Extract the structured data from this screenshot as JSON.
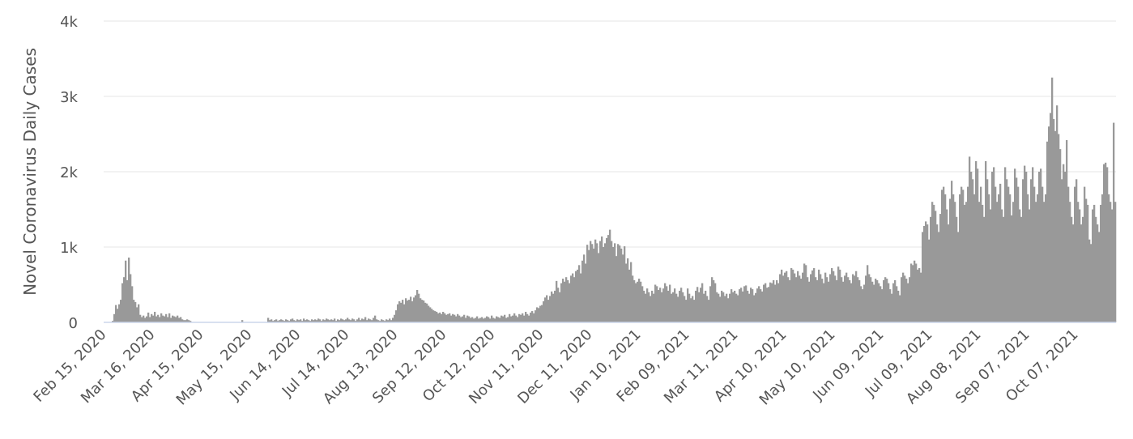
{
  "chart_data": {
    "type": "bar",
    "y_label": "Novel Coronavirus Daily Cases",
    "color": "#999999",
    "grid": true,
    "ylim": [
      0,
      4000
    ],
    "yticks": [
      0,
      {
        "value": 1000,
        "label": "1k"
      },
      {
        "value": 2000,
        "label": "2k"
      },
      {
        "value": 3000,
        "label": "3k"
      },
      {
        "value": 4000,
        "label": "4k"
      }
    ],
    "categories": [
      "Feb 15, 2020",
      null,
      null,
      null,
      null,
      null,
      null,
      null,
      null,
      null,
      null,
      null,
      null,
      null,
      null,
      null,
      null,
      null,
      null,
      null,
      null,
      null,
      null,
      null,
      null,
      null,
      null,
      null,
      null,
      null,
      "Mar 16, 2020",
      null,
      null,
      null,
      null,
      null,
      null,
      null,
      null,
      null,
      null,
      null,
      null,
      null,
      null,
      null,
      null,
      null,
      null,
      null,
      null,
      null,
      null,
      null,
      null,
      null,
      null,
      null,
      null,
      null,
      "Apr 15, 2020",
      null,
      null,
      null,
      null,
      null,
      null,
      null,
      null,
      null,
      null,
      null,
      null,
      null,
      null,
      null,
      null,
      null,
      null,
      null,
      null,
      null,
      null,
      null,
      null,
      null,
      null,
      null,
      null,
      null,
      "May 15, 2020",
      null,
      null,
      null,
      null,
      null,
      null,
      null,
      null,
      null,
      null,
      null,
      null,
      null,
      null,
      null,
      null,
      null,
      null,
      null,
      null,
      null,
      null,
      null,
      null,
      null,
      null,
      null,
      null,
      null,
      "Jun 14, 2020",
      null,
      null,
      null,
      null,
      null,
      null,
      null,
      null,
      null,
      null,
      null,
      null,
      null,
      null,
      null,
      null,
      null,
      null,
      null,
      null,
      null,
      null,
      null,
      null,
      null,
      null,
      null,
      null,
      null,
      "Jul 14, 2020",
      null,
      null,
      null,
      null,
      null,
      null,
      null,
      null,
      null,
      null,
      null,
      null,
      null,
      null,
      null,
      null,
      null,
      null,
      null,
      null,
      null,
      null,
      null,
      null,
      null,
      null,
      null,
      null,
      null,
      "Aug 13, 2020",
      null,
      null,
      null,
      null,
      null,
      null,
      null,
      null,
      null,
      null,
      null,
      null,
      null,
      null,
      null,
      null,
      null,
      null,
      null,
      null,
      null,
      null,
      null,
      null,
      null,
      null,
      null,
      null,
      null,
      "Sep 12, 2020",
      null,
      null,
      null,
      null,
      null,
      null,
      null,
      null,
      null,
      null,
      null,
      null,
      null,
      null,
      null,
      null,
      null,
      null,
      null,
      null,
      null,
      null,
      null,
      null,
      null,
      null,
      null,
      null,
      null,
      "Oct 12, 2020",
      null,
      null,
      null,
      null,
      null,
      null,
      null,
      null,
      null,
      null,
      null,
      null,
      null,
      null,
      null,
      null,
      null,
      null,
      null,
      null,
      null,
      null,
      null,
      null,
      null,
      null,
      null,
      null,
      null,
      "Nov 11, 2020",
      null,
      null,
      null,
      null,
      null,
      null,
      null,
      null,
      null,
      null,
      null,
      null,
      null,
      null,
      null,
      null,
      null,
      null,
      null,
      null,
      null,
      null,
      null,
      null,
      null,
      null,
      null,
      null,
      null,
      "Dec 11, 2020",
      null,
      null,
      null,
      null,
      null,
      null,
      null,
      null,
      null,
      null,
      null,
      null,
      null,
      null,
      null,
      null,
      null,
      null,
      null,
      null,
      null,
      null,
      null,
      null,
      null,
      null,
      null,
      null,
      null,
      "Jan 10, 2021",
      null,
      null,
      null,
      null,
      null,
      null,
      null,
      null,
      null,
      null,
      null,
      null,
      null,
      null,
      null,
      null,
      null,
      null,
      null,
      null,
      null,
      null,
      null,
      null,
      null,
      null,
      null,
      null,
      null,
      "Feb 09, 2021",
      null,
      null,
      null,
      null,
      null,
      null,
      null,
      null,
      null,
      null,
      null,
      null,
      null,
      null,
      null,
      null,
      null,
      null,
      null,
      null,
      null,
      null,
      null,
      null,
      null,
      null,
      null,
      null,
      null,
      "Mar 11, 2021",
      null,
      null,
      null,
      null,
      null,
      null,
      null,
      null,
      null,
      null,
      null,
      null,
      null,
      null,
      null,
      null,
      null,
      null,
      null,
      null,
      null,
      null,
      null,
      null,
      null,
      null,
      null,
      null,
      null,
      "Apr 10, 2021",
      null,
      null,
      null,
      null,
      null,
      null,
      null,
      null,
      null,
      null,
      null,
      null,
      null,
      null,
      null,
      null,
      null,
      null,
      null,
      null,
      null,
      null,
      null,
      null,
      null,
      null,
      null,
      null,
      null,
      "May 10, 2021",
      null,
      null,
      null,
      null,
      null,
      null,
      null,
      null,
      null,
      null,
      null,
      null,
      null,
      null,
      null,
      null,
      null,
      null,
      null,
      null,
      null,
      null,
      null,
      null,
      null,
      null,
      null,
      null,
      null,
      "Jun 09, 2021",
      null,
      null,
      null,
      null,
      null,
      null,
      null,
      null,
      null,
      null,
      null,
      null,
      null,
      null,
      null,
      null,
      null,
      null,
      null,
      null,
      null,
      null,
      null,
      null,
      null,
      null,
      null,
      null,
      null,
      "Jul 09, 2021",
      null,
      null,
      null,
      null,
      null,
      null,
      null,
      null,
      null,
      null,
      null,
      null,
      null,
      null,
      null,
      null,
      null,
      null,
      null,
      null,
      null,
      null,
      null,
      null,
      null,
      null,
      null,
      null,
      null,
      "Aug 08, 2021",
      null,
      null,
      null,
      null,
      null,
      null,
      null,
      null,
      null,
      null,
      null,
      null,
      null,
      null,
      null,
      null,
      null,
      null,
      null,
      null,
      null,
      null,
      null,
      null,
      null,
      null,
      null,
      null,
      null,
      "Sep 07, 2021",
      null,
      null,
      null,
      null,
      null,
      null,
      null,
      null,
      null,
      null,
      null,
      null,
      null,
      null,
      null,
      null,
      null,
      null,
      null,
      null,
      null,
      null,
      null,
      null,
      null,
      null,
      null,
      null,
      null,
      "Oct 07, 2021",
      null,
      null,
      null,
      null,
      null,
      null,
      null,
      null,
      null,
      null,
      null,
      null,
      null,
      null,
      null,
      null,
      null,
      null,
      null,
      null,
      null,
      null,
      null,
      null
    ],
    "values": [
      0,
      0,
      0,
      0,
      0,
      20,
      110,
      230,
      180,
      240,
      300,
      520,
      600,
      820,
      560,
      860,
      640,
      480,
      300,
      270,
      200,
      240,
      100,
      70,
      90,
      60,
      80,
      130,
      70,
      110,
      90,
      140,
      80,
      100,
      70,
      120,
      90,
      80,
      110,
      70,
      120,
      60,
      90,
      80,
      70,
      90,
      60,
      70,
      40,
      30,
      30,
      40,
      30,
      20,
      0,
      0,
      0,
      0,
      0,
      0,
      0,
      0,
      0,
      0,
      0,
      0,
      0,
      0,
      0,
      0,
      0,
      0,
      0,
      0,
      0,
      0,
      0,
      0,
      0,
      0,
      0,
      0,
      0,
      0,
      0,
      30,
      0,
      0,
      0,
      0,
      0,
      0,
      0,
      0,
      0,
      0,
      0,
      0,
      0,
      0,
      0,
      60,
      30,
      40,
      20,
      30,
      40,
      20,
      30,
      40,
      30,
      20,
      40,
      30,
      20,
      40,
      50,
      30,
      20,
      40,
      30,
      40,
      20,
      50,
      30,
      40,
      30,
      20,
      40,
      30,
      40,
      30,
      50,
      40,
      20,
      40,
      30,
      50,
      40,
      30,
      40,
      30,
      50,
      20,
      40,
      30,
      50,
      40,
      30,
      40,
      60,
      40,
      30,
      50,
      40,
      20,
      40,
      60,
      30,
      50,
      40,
      70,
      30,
      50,
      40,
      30,
      60,
      90,
      40,
      30,
      20,
      40,
      30,
      20,
      40,
      30,
      50,
      30,
      60,
      100,
      160,
      240,
      280,
      260,
      300,
      240,
      320,
      290,
      300,
      340,
      280,
      330,
      360,
      430,
      380,
      320,
      300,
      290,
      260,
      250,
      220,
      200,
      180,
      160,
      150,
      140,
      120,
      130,
      110,
      140,
      120,
      100,
      110,
      120,
      90,
      110,
      100,
      80,
      110,
      90,
      70,
      80,
      100,
      60,
      90,
      80,
      60,
      70,
      50,
      60,
      80,
      50,
      60,
      70,
      50,
      60,
      80,
      70,
      50,
      90,
      60,
      50,
      80,
      70,
      60,
      90,
      80,
      100,
      60,
      70,
      110,
      80,
      90,
      120,
      90,
      70,
      110,
      100,
      120,
      90,
      140,
      110,
      90,
      130,
      150,
      120,
      160,
      200,
      190,
      220,
      230,
      280,
      330,
      360,
      300,
      350,
      410,
      380,
      420,
      550,
      460,
      400,
      520,
      580,
      540,
      600,
      560,
      520,
      620,
      650,
      600,
      680,
      700,
      760,
      650,
      820,
      900,
      780,
      1030,
      960,
      1080,
      1040,
      980,
      1100,
      1050,
      920,
      1080,
      1140,
      1000,
      1050,
      1120,
      1160,
      1230,
      1080,
      1000,
      1050,
      880,
      1040,
      1020,
      980,
      900,
      1010,
      780,
      850,
      700,
      800,
      620,
      560,
      520,
      540,
      580,
      540,
      480,
      420,
      380,
      450,
      400,
      350,
      420,
      380,
      500,
      480,
      430,
      460,
      400,
      450,
      520,
      480,
      420,
      500,
      380,
      400,
      450,
      380,
      340,
      420,
      460,
      400,
      350,
      300,
      450,
      380,
      320,
      350,
      300,
      420,
      470,
      400,
      460,
      520,
      380,
      420,
      350,
      300,
      480,
      600,
      560,
      520,
      400,
      380,
      340,
      420,
      400,
      350,
      380,
      320,
      380,
      440,
      400,
      420,
      380,
      360,
      440,
      460,
      410,
      480,
      490,
      420,
      380,
      460,
      440,
      360,
      390,
      450,
      480,
      440,
      410,
      500,
      520,
      460,
      470,
      530,
      520,
      560,
      500,
      560,
      520,
      640,
      700,
      620,
      660,
      680,
      600,
      560,
      720,
      700,
      650,
      600,
      680,
      620,
      580,
      660,
      780,
      760,
      600,
      540,
      640,
      690,
      720,
      600,
      560,
      700,
      640,
      580,
      520,
      660,
      600,
      540,
      640,
      720,
      680,
      620,
      560,
      740,
      700,
      600,
      540,
      620,
      660,
      600,
      560,
      520,
      640,
      620,
      680,
      600,
      560,
      480,
      440,
      500,
      620,
      760,
      640,
      600,
      540,
      500,
      580,
      560,
      520,
      480,
      440,
      560,
      600,
      580,
      520,
      440,
      380,
      520,
      560,
      480,
      420,
      360,
      600,
      660,
      620,
      580,
      520,
      600,
      780,
      760,
      820,
      780,
      700,
      720,
      660,
      1200,
      1280,
      1340,
      1300,
      1100,
      1400,
      1600,
      1560,
      1480,
      1300,
      1200,
      1440,
      1760,
      1800,
      1700,
      1500,
      1300,
      1640,
      1880,
      1700,
      1600,
      1400,
      1200,
      1700,
      1800,
      1760,
      1560,
      1600,
      1800,
      2200,
      2000,
      1900,
      1700,
      2140,
      2040,
      1600,
      1800,
      1560,
      1400,
      2140,
      1900,
      1700,
      1500,
      2000,
      2060,
      1800,
      1600,
      1700,
      1840,
      1500,
      1400,
      2060,
      1900,
      1800,
      1700,
      1420,
      1600,
      2040,
      1920,
      1800,
      1500,
      1400,
      1900,
      2080,
      2000,
      1700,
      1500,
      1900,
      2060,
      1800,
      1600,
      1700,
      2000,
      2040,
      1800,
      1600,
      1700,
      2400,
      2600,
      2780,
      3250,
      2700,
      2540,
      2880,
      2500,
      2300,
      1900,
      2100,
      2000,
      2420,
      1800,
      1600,
      1400,
      1300,
      1800,
      1900,
      1600,
      1500,
      1300,
      1400,
      1800,
      1640,
      1560,
      1100,
      1040,
      1500,
      1560,
      1400,
      1300,
      1200,
      1560,
      1700,
      2100,
      2120,
      2060,
      1700,
      1600,
      1500,
      2650,
      1600
    ]
  }
}
